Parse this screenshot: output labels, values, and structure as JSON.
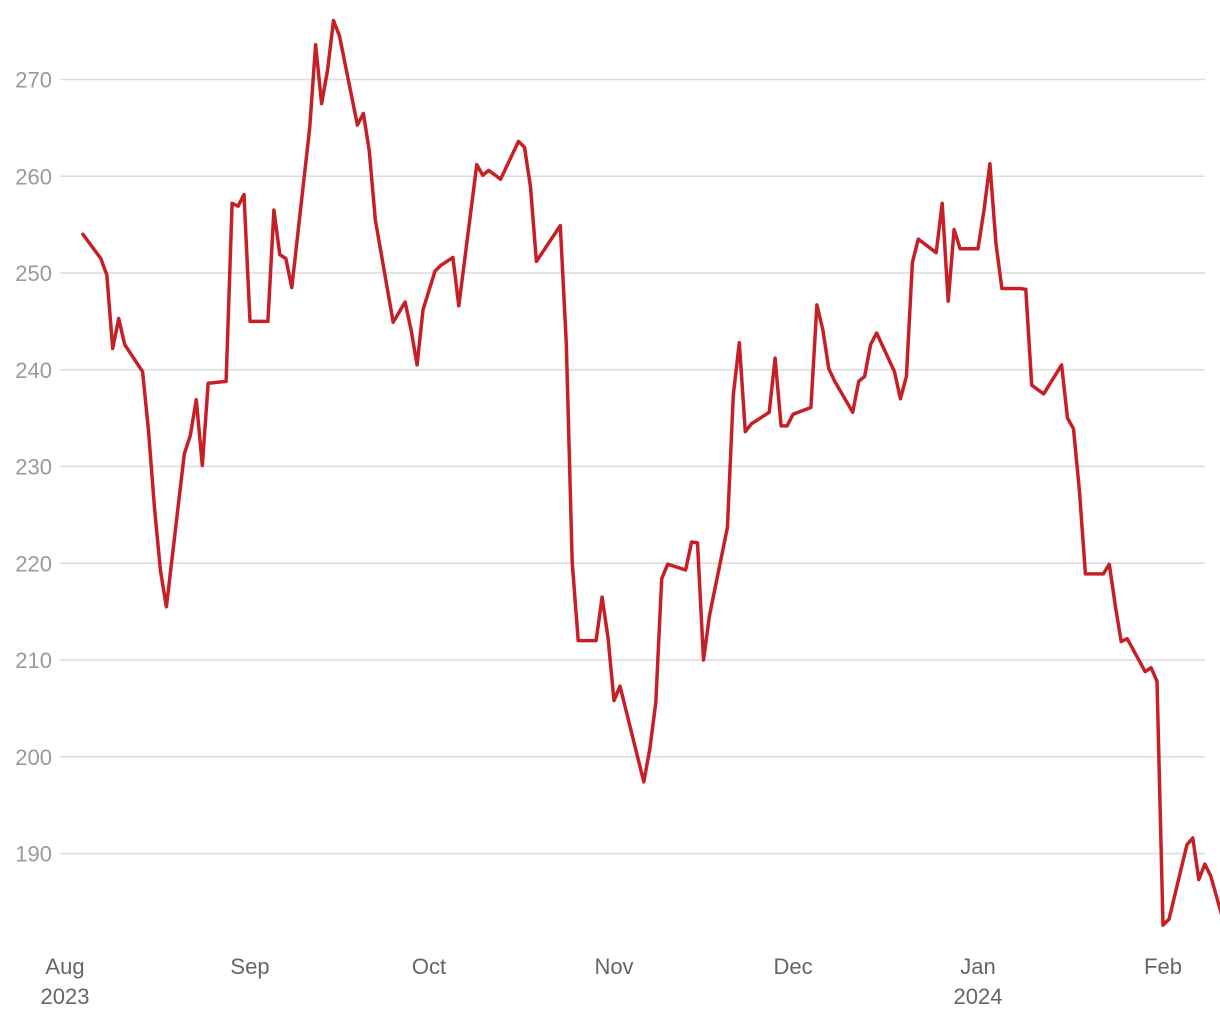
{
  "chart_data": {
    "type": "line",
    "title": "",
    "xlabel": "",
    "ylabel": "",
    "ylim": [
      181,
      277
    ],
    "xlim": [
      "2023-08-01",
      "2024-02-06"
    ],
    "grid": true,
    "legend": "none",
    "y_ticks": [
      190,
      200,
      210,
      220,
      230,
      240,
      250,
      260,
      270
    ],
    "x_ticks": [
      {
        "date": "2023-08-01",
        "label": "Aug",
        "sublabel": "2023"
      },
      {
        "date": "2023-09-01",
        "label": "Sep",
        "sublabel": ""
      },
      {
        "date": "2023-10-01",
        "label": "Oct",
        "sublabel": ""
      },
      {
        "date": "2023-11-01",
        "label": "Nov",
        "sublabel": ""
      },
      {
        "date": "2023-12-01",
        "label": "Dec",
        "sublabel": ""
      },
      {
        "date": "2024-01-01",
        "label": "Jan",
        "sublabel": "2024"
      },
      {
        "date": "2024-02-01",
        "label": "Feb",
        "sublabel": ""
      }
    ],
    "series": [
      {
        "color": "#c62026",
        "points": [
          [
            "2023-08-04",
            254.0
          ],
          [
            "2023-08-07",
            251.5
          ],
          [
            "2023-08-08",
            249.8
          ],
          [
            "2023-08-09",
            242.2
          ],
          [
            "2023-08-10",
            245.3
          ],
          [
            "2023-08-11",
            242.6
          ],
          [
            "2023-08-14",
            239.8
          ],
          [
            "2023-08-15",
            233.7
          ],
          [
            "2023-08-16",
            225.7
          ],
          [
            "2023-08-17",
            219.2
          ],
          [
            "2023-08-18",
            215.5
          ],
          [
            "2023-08-21",
            231.3
          ],
          [
            "2023-08-22",
            233.2
          ],
          [
            "2023-08-23",
            236.9
          ],
          [
            "2023-08-24",
            230.1
          ],
          [
            "2023-08-25",
            238.6
          ],
          [
            "2023-08-28",
            238.8
          ],
          [
            "2023-08-29",
            257.2
          ],
          [
            "2023-08-30",
            256.9
          ],
          [
            "2023-08-31",
            258.1
          ],
          [
            "2023-09-01",
            245.0
          ],
          [
            "2023-09-04",
            245.0
          ],
          [
            "2023-09-05",
            256.5
          ],
          [
            "2023-09-06",
            251.9
          ],
          [
            "2023-09-07",
            251.5
          ],
          [
            "2023-09-08",
            248.5
          ],
          [
            "2023-09-11",
            265.0
          ],
          [
            "2023-09-12",
            273.6
          ],
          [
            "2023-09-13",
            267.5
          ],
          [
            "2023-09-14",
            271.0
          ],
          [
            "2023-09-15",
            276.1
          ],
          [
            "2023-09-16",
            274.5
          ],
          [
            "2023-09-19",
            265.3
          ],
          [
            "2023-09-20",
            266.5
          ],
          [
            "2023-09-21",
            262.6
          ],
          [
            "2023-09-22",
            255.5
          ],
          [
            "2023-09-25",
            244.9
          ],
          [
            "2023-09-27",
            247.0
          ],
          [
            "2023-09-28",
            244.1
          ],
          [
            "2023-09-29",
            240.5
          ],
          [
            "2023-09-30",
            246.2
          ],
          [
            "2023-10-02",
            250.2
          ],
          [
            "2023-10-03",
            250.8
          ],
          [
            "2023-10-05",
            251.6
          ],
          [
            "2023-10-06",
            246.6
          ],
          [
            "2023-10-09",
            261.2
          ],
          [
            "2023-10-10",
            260.1
          ],
          [
            "2023-10-11",
            260.6
          ],
          [
            "2023-10-13",
            259.7
          ],
          [
            "2023-10-16",
            263.6
          ],
          [
            "2023-10-17",
            263.0
          ],
          [
            "2023-10-18",
            258.9
          ],
          [
            "2023-10-19",
            251.2
          ],
          [
            "2023-10-23",
            254.9
          ],
          [
            "2023-10-24",
            242.7
          ],
          [
            "2023-10-25",
            220.1
          ],
          [
            "2023-10-26",
            212.0
          ],
          [
            "2023-10-27",
            212.0
          ],
          [
            "2023-10-29",
            212.0
          ],
          [
            "2023-10-30",
            216.5
          ],
          [
            "2023-10-31",
            212.3
          ],
          [
            "2023-11-01",
            205.8
          ],
          [
            "2023-11-02",
            207.3
          ],
          [
            "2023-11-06",
            197.4
          ],
          [
            "2023-11-07",
            200.8
          ],
          [
            "2023-11-08",
            205.6
          ],
          [
            "2023-11-09",
            218.4
          ],
          [
            "2023-11-10",
            219.9
          ],
          [
            "2023-11-13",
            219.3
          ],
          [
            "2023-11-14",
            222.2
          ],
          [
            "2023-11-15",
            222.1
          ],
          [
            "2023-11-16",
            210.0
          ],
          [
            "2023-11-17",
            214.6
          ],
          [
            "2023-11-20",
            223.7
          ],
          [
            "2023-11-21",
            237.4
          ],
          [
            "2023-11-22",
            242.8
          ],
          [
            "2023-11-23",
            233.6
          ],
          [
            "2023-11-24",
            234.4
          ],
          [
            "2023-11-27",
            235.6
          ],
          [
            "2023-11-28",
            241.2
          ],
          [
            "2023-11-29",
            234.2
          ],
          [
            "2023-11-30",
            234.2
          ],
          [
            "2023-12-01",
            235.4
          ],
          [
            "2023-12-04",
            236.1
          ],
          [
            "2023-12-05",
            246.7
          ],
          [
            "2023-12-06",
            244.1
          ],
          [
            "2023-12-07",
            240.1
          ],
          [
            "2023-12-08",
            238.8
          ],
          [
            "2023-12-11",
            235.6
          ],
          [
            "2023-12-12",
            238.8
          ],
          [
            "2023-12-13",
            239.3
          ],
          [
            "2023-12-14",
            242.6
          ],
          [
            "2023-12-15",
            243.8
          ],
          [
            "2023-12-18",
            239.8
          ],
          [
            "2023-12-19",
            237.0
          ],
          [
            "2023-12-20",
            239.3
          ],
          [
            "2023-12-21",
            251.1
          ],
          [
            "2023-12-22",
            253.5
          ],
          [
            "2023-12-25",
            252.1
          ],
          [
            "2023-12-26",
            257.2
          ],
          [
            "2023-12-27",
            247.1
          ],
          [
            "2023-12-28",
            254.5
          ],
          [
            "2023-12-29",
            252.5
          ],
          [
            "2023-12-30",
            252.5
          ],
          [
            "2024-01-01",
            252.5
          ],
          [
            "2024-01-02",
            256.5
          ],
          [
            "2024-01-03",
            261.3
          ],
          [
            "2024-01-04",
            253.1
          ],
          [
            "2024-01-05",
            248.4
          ],
          [
            "2024-01-08",
            248.4
          ],
          [
            "2024-01-09",
            248.3
          ],
          [
            "2024-01-10",
            238.4
          ],
          [
            "2024-01-12",
            237.5
          ],
          [
            "2024-01-15",
            240.5
          ],
          [
            "2024-01-16",
            235.0
          ],
          [
            "2024-01-17",
            233.9
          ],
          [
            "2024-01-18",
            227.4
          ],
          [
            "2024-01-19",
            218.9
          ],
          [
            "2024-01-22",
            218.9
          ],
          [
            "2024-01-23",
            219.9
          ],
          [
            "2024-01-24",
            215.6
          ],
          [
            "2024-01-25",
            211.9
          ],
          [
            "2024-01-26",
            212.2
          ],
          [
            "2024-01-29",
            208.8
          ],
          [
            "2024-01-30",
            209.2
          ],
          [
            "2024-01-31",
            207.8
          ],
          [
            "2024-02-01",
            182.6
          ],
          [
            "2024-02-02",
            183.2
          ],
          [
            "2024-02-05",
            190.9
          ],
          [
            "2024-02-06",
            191.6
          ],
          [
            "2024-02-07",
            187.3
          ],
          [
            "2024-02-08",
            188.9
          ],
          [
            "2024-02-09",
            187.7
          ],
          [
            "2024-02-12",
            181.1
          ]
        ]
      }
    ]
  }
}
